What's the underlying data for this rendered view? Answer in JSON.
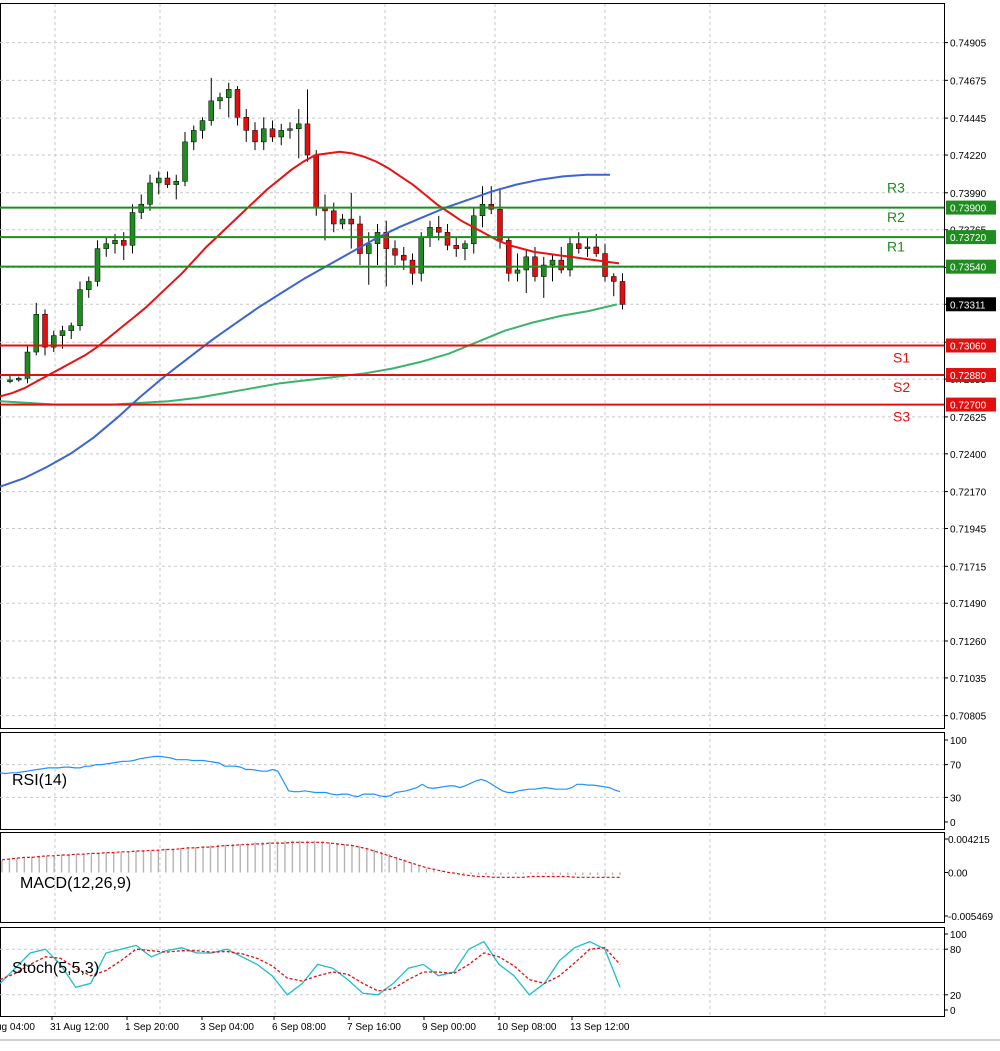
{
  "chart_data": [
    {
      "type": "candlestick",
      "title": "",
      "colors": {
        "up": "#1e8c1e",
        "down": "#e01010",
        "ma_fast": "#e81212",
        "ma_mid": "#3c64d2",
        "ma_slow": "#3cb46e",
        "support": "#e01010",
        "resistance": "#1e8c1e"
      },
      "y_ticks": [
        "0.74905",
        "0.74675",
        "0.74445",
        "0.74220",
        "0.73990",
        "0.73765",
        "0.73535",
        "0.73311",
        "0.73080",
        "0.72855",
        "0.72625",
        "0.72400",
        "0.72170",
        "0.71945",
        "0.71715",
        "0.71490",
        "0.71260",
        "0.71035",
        "0.70805"
      ],
      "ylim": [
        0.7073,
        0.7514
      ],
      "last_price": "0.73311",
      "levels": [
        {
          "name": "R3",
          "value": 0.739,
          "label": "0.73900",
          "kind": "resistance"
        },
        {
          "name": "R2",
          "value": 0.7372,
          "label": "0.73720",
          "kind": "resistance"
        },
        {
          "name": "R1",
          "value": 0.7354,
          "label": "0.73540",
          "kind": "resistance"
        },
        {
          "name": "S1",
          "value": 0.7306,
          "label": "0.73060",
          "kind": "support"
        },
        {
          "name": "S2",
          "value": 0.7288,
          "label": "0.72880",
          "kind": "support"
        },
        {
          "name": "S3",
          "value": 0.727,
          "label": "0.72700",
          "kind": "support"
        }
      ],
      "candles": [
        [
          0.7284,
          0.7288,
          0.7283,
          0.7285
        ],
        [
          0.7285,
          0.7287,
          0.7284,
          0.7286
        ],
        [
          0.7286,
          0.7306,
          0.7283,
          0.7302
        ],
        [
          0.7302,
          0.7332,
          0.73,
          0.7325
        ],
        [
          0.7325,
          0.7328,
          0.73,
          0.7305
        ],
        [
          0.7305,
          0.7315,
          0.7302,
          0.7312
        ],
        [
          0.7312,
          0.7318,
          0.7304,
          0.7315
        ],
        [
          0.7315,
          0.732,
          0.731,
          0.7318
        ],
        [
          0.7318,
          0.7345,
          0.7315,
          0.734
        ],
        [
          0.734,
          0.7348,
          0.7335,
          0.7345
        ],
        [
          0.7345,
          0.737,
          0.7342,
          0.7365
        ],
        [
          0.7365,
          0.7372,
          0.736,
          0.7368
        ],
        [
          0.7368,
          0.7374,
          0.7362,
          0.737
        ],
        [
          0.737,
          0.7375,
          0.7358,
          0.7367
        ],
        [
          0.7367,
          0.7392,
          0.7362,
          0.7387
        ],
        [
          0.7387,
          0.7398,
          0.7383,
          0.7392
        ],
        [
          0.7392,
          0.741,
          0.7388,
          0.7405
        ],
        [
          0.7405,
          0.7412,
          0.7398,
          0.7408
        ],
        [
          0.7408,
          0.7412,
          0.7402,
          0.7404
        ],
        [
          0.7404,
          0.741,
          0.7395,
          0.7406
        ],
        [
          0.7406,
          0.7436,
          0.7403,
          0.743
        ],
        [
          0.743,
          0.744,
          0.7425,
          0.7437
        ],
        [
          0.7437,
          0.7445,
          0.7432,
          0.7443
        ],
        [
          0.7443,
          0.7469,
          0.744,
          0.7455
        ],
        [
          0.7455,
          0.746,
          0.745,
          0.7457
        ],
        [
          0.7457,
          0.7466,
          0.7445,
          0.7462
        ],
        [
          0.7462,
          0.7464,
          0.744,
          0.7445
        ],
        [
          0.7445,
          0.745,
          0.743,
          0.7437
        ],
        [
          0.7437,
          0.7442,
          0.7425,
          0.743
        ],
        [
          0.743,
          0.7445,
          0.7425,
          0.7438
        ],
        [
          0.7438,
          0.7443,
          0.743,
          0.7433
        ],
        [
          0.7433,
          0.7441,
          0.7428,
          0.7437
        ],
        [
          0.7437,
          0.7442,
          0.7432,
          0.7438
        ],
        [
          0.7438,
          0.745,
          0.742,
          0.7441
        ],
        [
          0.7441,
          0.7462,
          0.7418,
          0.7422
        ],
        [
          0.7422,
          0.7425,
          0.7385,
          0.739
        ],
        [
          0.739,
          0.7398,
          0.737,
          0.7388
        ],
        [
          0.7388,
          0.7393,
          0.7375,
          0.738
        ],
        [
          0.738,
          0.7386,
          0.7377,
          0.7383
        ],
        [
          0.7383,
          0.7399,
          0.7365,
          0.738
        ],
        [
          0.738,
          0.7385,
          0.7355,
          0.7362
        ],
        [
          0.7362,
          0.7375,
          0.7343,
          0.7368
        ],
        [
          0.7368,
          0.738,
          0.7355,
          0.7375
        ],
        [
          0.7375,
          0.7382,
          0.7342,
          0.7365
        ],
        [
          0.7365,
          0.737,
          0.7355,
          0.7361
        ],
        [
          0.7361,
          0.7366,
          0.7352,
          0.7358
        ],
        [
          0.7358,
          0.7362,
          0.7343,
          0.735
        ],
        [
          0.735,
          0.7375,
          0.7345,
          0.7372
        ],
        [
          0.7372,
          0.7382,
          0.7366,
          0.7378
        ],
        [
          0.7378,
          0.7385,
          0.737,
          0.7375
        ],
        [
          0.7375,
          0.738,
          0.7364,
          0.7367
        ],
        [
          0.7367,
          0.7372,
          0.736,
          0.7365
        ],
        [
          0.7365,
          0.737,
          0.7358,
          0.7368
        ],
        [
          0.7368,
          0.739,
          0.7362,
          0.7385
        ],
        [
          0.7385,
          0.7403,
          0.7378,
          0.7392
        ],
        [
          0.7392,
          0.7403,
          0.7386,
          0.7389
        ],
        [
          0.7389,
          0.7402,
          0.7365,
          0.737
        ],
        [
          0.737,
          0.7372,
          0.7345,
          0.735
        ],
        [
          0.735,
          0.7362,
          0.7345,
          0.7352
        ],
        [
          0.7352,
          0.7364,
          0.7338,
          0.736
        ],
        [
          0.736,
          0.7366,
          0.7345,
          0.7348
        ],
        [
          0.7348,
          0.736,
          0.7335,
          0.7355
        ],
        [
          0.7355,
          0.7362,
          0.7345,
          0.7358
        ],
        [
          0.7358,
          0.7366,
          0.735,
          0.7352
        ],
        [
          0.7352,
          0.7372,
          0.7348,
          0.7368
        ],
        [
          0.7368,
          0.7375,
          0.7362,
          0.7365
        ],
        [
          0.7365,
          0.7372,
          0.736,
          0.7366
        ],
        [
          0.7366,
          0.7374,
          0.736,
          0.7362
        ],
        [
          0.7362,
          0.7368,
          0.7345,
          0.7348
        ],
        [
          0.7348,
          0.735,
          0.7336,
          0.7345
        ],
        [
          0.7345,
          0.735,
          0.7328,
          0.7331
        ]
      ],
      "ma_fast": [
        0.7275,
        0.7277,
        0.728,
        0.7284,
        0.7288,
        0.7292,
        0.7296,
        0.73,
        0.7305,
        0.7311,
        0.7317,
        0.7323,
        0.7329,
        0.7336,
        0.7343,
        0.735,
        0.7358,
        0.7366,
        0.7373,
        0.738,
        0.7387,
        0.7394,
        0.7401,
        0.7407,
        0.7413,
        0.7418,
        0.7422,
        0.7423,
        0.7424,
        0.7423,
        0.7421,
        0.7418,
        0.7414,
        0.7409,
        0.7404,
        0.7398,
        0.7392,
        0.7387,
        0.7382,
        0.7378,
        0.7374,
        0.737,
        0.7367,
        0.7365,
        0.7363,
        0.7362,
        0.7361,
        0.736,
        0.7359,
        0.7358,
        0.7357,
        0.7356
      ],
      "ma_mid": [
        0.722,
        0.7225,
        0.7232,
        0.724,
        0.725,
        0.7262,
        0.7275,
        0.7287,
        0.7298,
        0.7309,
        0.7319,
        0.7329,
        0.7338,
        0.7347,
        0.7355,
        0.7363,
        0.7371,
        0.7378,
        0.7384,
        0.739,
        0.7395,
        0.74,
        0.7404,
        0.7407,
        0.7409,
        0.741,
        0.741
      ],
      "ma_slow": [
        0.7272,
        0.7271,
        0.727,
        0.727,
        0.727,
        0.7271,
        0.7272,
        0.7274,
        0.7277,
        0.728,
        0.7283,
        0.7285,
        0.7287,
        0.7289,
        0.7292,
        0.7296,
        0.7301,
        0.7308,
        0.7315,
        0.732,
        0.7324,
        0.7327,
        0.7331
      ],
      "x_labels": [
        "ug 04:00",
        "31 Aug 12:00",
        "1 Sep 20:00",
        "3 Sep 04:00",
        "6 Sep 08:00",
        "7 Sep 16:00",
        "9 Sep 00:00",
        "10 Sep 08:00",
        "13 Sep 12:00"
      ]
    },
    {
      "type": "line",
      "title": "RSI(14)",
      "y_ticks": [
        "100",
        "70",
        "30",
        "0"
      ],
      "ylim": [
        0,
        100
      ],
      "color": "#1e90ff",
      "values": [
        60,
        59,
        60,
        60,
        61,
        62,
        63,
        64,
        65,
        66,
        66,
        66,
        67,
        67,
        66,
        66,
        68,
        68,
        70,
        70,
        71,
        72,
        73,
        74,
        74,
        75,
        77,
        78,
        79,
        80,
        80,
        79,
        78,
        76,
        76,
        76,
        75,
        75,
        75,
        74,
        73,
        72,
        68,
        68,
        68,
        67,
        64,
        64,
        63,
        62,
        62,
        64,
        62,
        50,
        38,
        37,
        37,
        38,
        37,
        36,
        36,
        36,
        34,
        33,
        34,
        34,
        32,
        31,
        34,
        34,
        34,
        32,
        31,
        32,
        36,
        37,
        38,
        40,
        42,
        46,
        42,
        41,
        42,
        43,
        44,
        44,
        42,
        44,
        47,
        50,
        52,
        50,
        46,
        42,
        38,
        36,
        36,
        38,
        39,
        40,
        40,
        41,
        42,
        41,
        40,
        40,
        40,
        42,
        46,
        46,
        45,
        45,
        44,
        43,
        42,
        39,
        37
      ]
    },
    {
      "type": "bar",
      "title": "MACD(12,26,9)",
      "y_ticks": [
        "0.004215",
        "0.00",
        "-0.005469"
      ],
      "ylim": [
        -0.005469,
        0.004215
      ],
      "bar_color": "#b4b4b4",
      "signal_color": "#e01010",
      "values": [
        0.0015,
        0.0017,
        0.0018,
        0.0019,
        0.002,
        0.0021,
        0.0021,
        0.0021,
        0.0022,
        0.0023,
        0.0023,
        0.0024,
        0.0024,
        0.0025,
        0.0025,
        0.0026,
        0.0026,
        0.0027,
        0.0027,
        0.0028,
        0.0028,
        0.0029,
        0.003,
        0.003,
        0.0031,
        0.0032,
        0.0032,
        0.0033,
        0.0034,
        0.0035,
        0.0035,
        0.0036,
        0.0036,
        0.0037,
        0.0038,
        0.0038,
        0.0039,
        0.0039,
        0.004,
        0.004,
        0.004,
        0.004,
        0.004,
        0.0039,
        0.0038,
        0.0037,
        0.0036,
        0.0035,
        0.0033,
        0.0031,
        0.0029,
        0.0026,
        0.0023,
        0.002,
        0.0016,
        0.0012,
        0.0008,
        0.0005,
        0.0003,
        0.0001,
        0.0,
        -0.0001,
        -0.0002,
        -0.0002,
        -0.0003,
        -0.0003,
        -0.0003,
        -0.0003,
        -0.0002,
        -0.0002,
        -0.0002,
        -0.0002,
        -0.0002,
        -0.0002,
        -0.0003,
        -0.0003,
        -0.0003,
        -0.0003,
        -0.0003,
        -0.0003,
        -0.0003,
        -0.0003,
        -0.0003,
        -0.0003
      ],
      "signal": [
        0.0016,
        0.0017,
        0.0018,
        0.0019,
        0.0019,
        0.002,
        0.0021,
        0.0021,
        0.0022,
        0.0022,
        0.0023,
        0.0023,
        0.0024,
        0.0024,
        0.0025,
        0.0025,
        0.0026,
        0.0026,
        0.0027,
        0.0027,
        0.0028,
        0.0028,
        0.0029,
        0.0029,
        0.003,
        0.0031,
        0.0031,
        0.0032,
        0.0032,
        0.0033,
        0.0034,
        0.0034,
        0.0035,
        0.0035,
        0.0036,
        0.0036,
        0.0037,
        0.0037,
        0.0037,
        0.0038,
        0.0038,
        0.0038,
        0.0038,
        0.0038,
        0.0037,
        0.0036,
        0.0035,
        0.0034,
        0.0032,
        0.003,
        0.0027,
        0.0024,
        0.0021,
        0.0018,
        0.0015,
        0.0012,
        0.0009,
        0.0006,
        0.0004,
        0.0002,
        0.0,
        -0.0001,
        -0.0003,
        -0.0004,
        -0.0005,
        -0.0005,
        -0.0006,
        -0.0006,
        -0.0006,
        -0.0006,
        -0.0006,
        -0.0005,
        -0.0005,
        -0.0005,
        -0.0005,
        -0.0005,
        -0.0005,
        -0.0006,
        -0.0006,
        -0.0006,
        -0.0006,
        -0.0006,
        -0.0006,
        -0.0006
      ]
    },
    {
      "type": "line",
      "title": "Stoch(5,5,3)",
      "y_ticks": [
        "100",
        "80",
        "20",
        "0"
      ],
      "ylim": [
        0,
        100
      ],
      "series": [
        {
          "color": "#1ebec8",
          "values": [
            35,
            55,
            75,
            80,
            60,
            30,
            35,
            75,
            80,
            85,
            70,
            78,
            82,
            75,
            75,
            80,
            70,
            60,
            45,
            20,
            35,
            60,
            55,
            40,
            22,
            20,
            35,
            55,
            60,
            45,
            50,
            80,
            90,
            60,
            45,
            20,
            35,
            65,
            82,
            90,
            80,
            30
          ]
        },
        {
          "color": "#e01010",
          "dashed": true,
          "values": [
            40,
            48,
            60,
            70,
            68,
            55,
            45,
            52,
            65,
            80,
            78,
            76,
            78,
            78,
            76,
            77,
            74,
            68,
            58,
            42,
            38,
            45,
            50,
            47,
            35,
            25,
            28,
            40,
            50,
            50,
            48,
            60,
            75,
            70,
            58,
            40,
            35,
            45,
            62,
            80,
            82,
            60
          ]
        }
      ]
    }
  ]
}
